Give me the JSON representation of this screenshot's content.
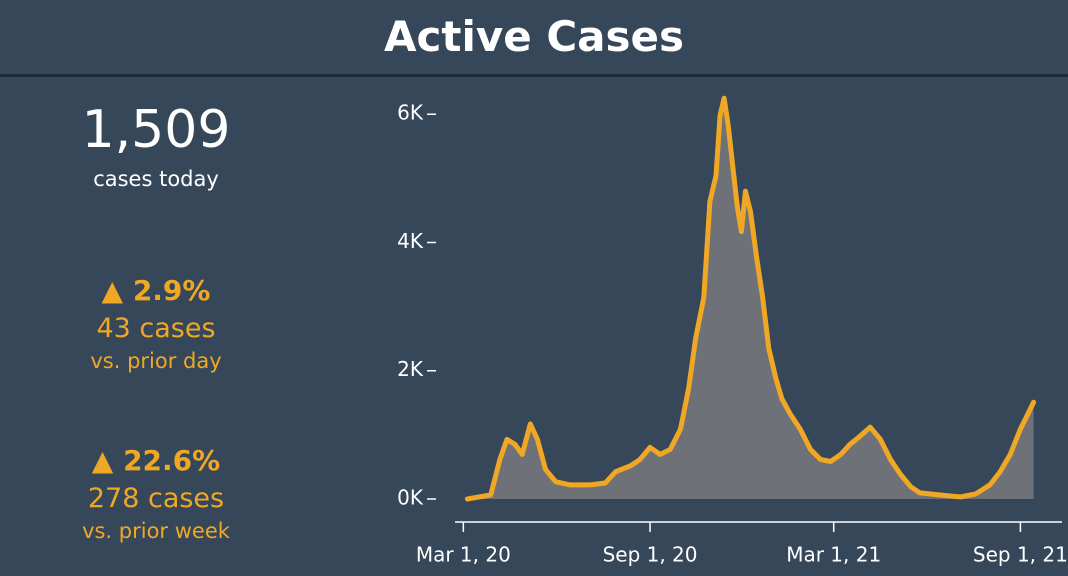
{
  "header": {
    "title": "Active Cases"
  },
  "kpis": {
    "today_value": "1,509",
    "today_label": "cases today",
    "day_pct": "2.9%",
    "day_cases": "43 cases",
    "day_label": "vs. prior day",
    "week_pct": "22.6%",
    "week_cases": "278 cases",
    "week_label": "vs. prior week"
  },
  "chart_data": {
    "type": "area",
    "x": [
      "2020-03-05",
      "2020-03-28",
      "2020-04-06",
      "2020-04-13",
      "2020-04-21",
      "2020-04-28",
      "2020-05-06",
      "2020-05-13",
      "2020-05-21",
      "2020-05-31",
      "2020-06-14",
      "2020-07-04",
      "2020-07-19",
      "2020-07-29",
      "2020-08-13",
      "2020-08-22",
      "2020-09-01",
      "2020-09-11",
      "2020-09-21",
      "2020-10-01",
      "2020-10-09",
      "2020-10-16",
      "2020-10-24",
      "2020-10-30",
      "2020-11-05",
      "2020-11-09",
      "2020-11-13",
      "2020-11-17",
      "2020-11-22",
      "2020-11-26",
      "2020-11-30",
      "2020-12-04",
      "2020-12-09",
      "2020-12-15",
      "2020-12-21",
      "2020-12-27",
      "2021-01-03",
      "2021-01-09",
      "2021-01-17",
      "2021-01-27",
      "2021-02-06",
      "2021-02-16",
      "2021-02-26",
      "2021-03-08",
      "2021-03-17",
      "2021-03-27",
      "2021-04-06",
      "2021-04-16",
      "2021-04-26",
      "2021-05-06",
      "2021-05-16",
      "2021-05-25",
      "2021-06-14",
      "2021-07-04",
      "2021-07-19",
      "2021-08-02",
      "2021-08-12",
      "2021-08-22",
      "2021-09-01",
      "2021-09-06",
      "2021-09-14"
    ],
    "values": [
      0,
      63,
      616,
      930,
      850,
      695,
      1170,
      930,
      460,
      270,
      220,
      220,
      250,
      425,
      520,
      615,
      805,
      695,
      775,
      1090,
      1720,
      2510,
      3140,
      4640,
      5040,
      5980,
      6250,
      5830,
      5120,
      4560,
      4170,
      4800,
      4480,
      3770,
      3140,
      2350,
      1880,
      1560,
      1330,
      1090,
      775,
      616,
      585,
      695,
      850,
      980,
      1120,
      930,
      616,
      380,
      190,
      95,
      63,
      32,
      79,
      220,
      425,
      695,
      1090,
      1250,
      1509
    ],
    "color": "#f0a824",
    "fill": "#6e7177",
    "xlim": [
      "2020-02-07",
      "2021-10-12"
    ],
    "xticks": [
      {
        "value": "2020-03-01",
        "label": "Mar 1, 20"
      },
      {
        "value": "2020-09-01",
        "label": "Sep 1, 20"
      },
      {
        "value": "2021-03-01",
        "label": "Mar 1, 21"
      },
      {
        "value": "2021-09-01",
        "label": "Sep 1, 21"
      }
    ],
    "ylim": [
      0,
      6300
    ],
    "yticks": [
      {
        "value": 0,
        "label": "0K"
      },
      {
        "value": 2000,
        "label": "2K"
      },
      {
        "value": 4000,
        "label": "4K"
      },
      {
        "value": 6000,
        "label": "6K"
      }
    ]
  }
}
